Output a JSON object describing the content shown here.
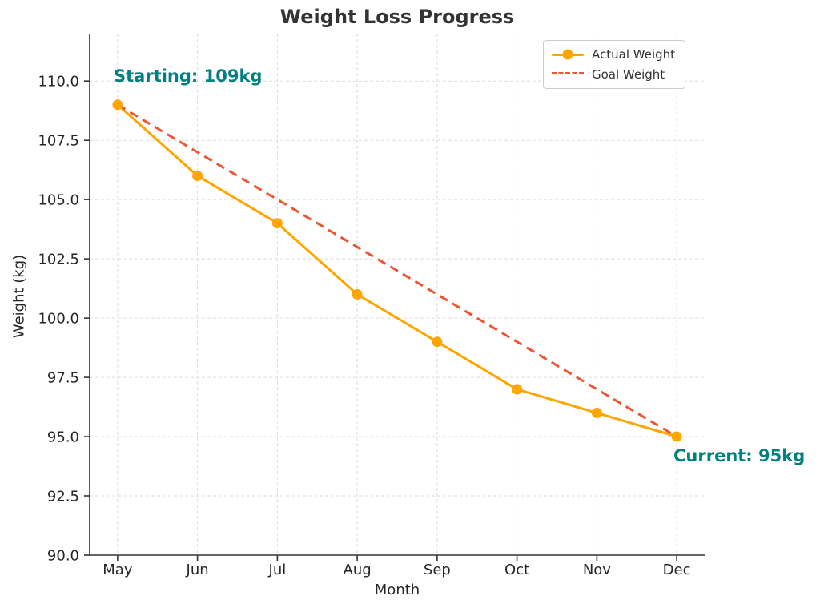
{
  "chart_data": {
    "type": "line",
    "title": "Weight Loss Progress",
    "xlabel": "Month",
    "ylabel": "Weight (kg)",
    "categories": [
      "May",
      "Jun",
      "Jul",
      "Aug",
      "Sep",
      "Oct",
      "Nov",
      "Dec"
    ],
    "series": [
      {
        "name": "Actual Weight",
        "values": [
          109,
          106,
          104,
          101,
          99,
          97,
          96,
          95
        ],
        "color": "#FFA500",
        "style": "solid",
        "marker": "circle"
      },
      {
        "name": "Goal Weight",
        "values": [
          109,
          107,
          105,
          103,
          101,
          99,
          97,
          95
        ],
        "color": "#EE5533",
        "style": "dashed",
        "marker": "none"
      }
    ],
    "ylim": [
      90,
      112
    ],
    "yticks": [
      "90.0",
      "92.5",
      "95.0",
      "97.5",
      "100.0",
      "102.5",
      "105.0",
      "107.5",
      "110.0"
    ],
    "grid": true,
    "legend_position": "upper right",
    "annotations": [
      {
        "text": "Starting: 109kg",
        "color": "#008080",
        "anchor": "May-109"
      },
      {
        "text": "Current: 95kg",
        "color": "#008080",
        "anchor": "Dec-95"
      }
    ],
    "colors": {
      "grid": "#DDDDDD",
      "spine": "#333333",
      "tick_label": "#262626",
      "title": "#333333",
      "annotation": "#008080"
    }
  }
}
